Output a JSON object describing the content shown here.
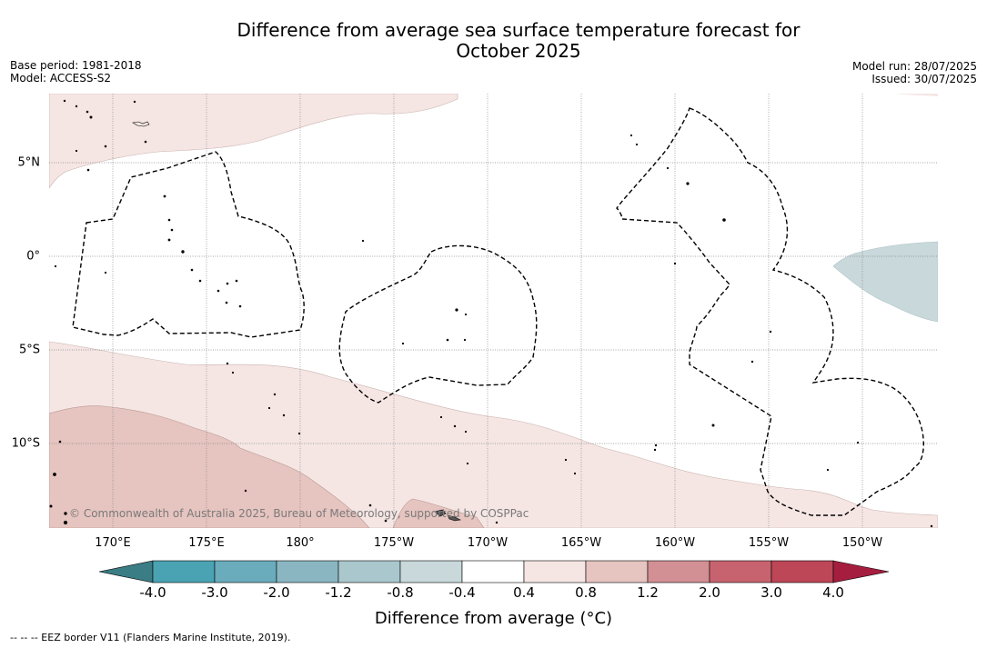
{
  "title_line1": "Difference from average sea surface temperature forecast for",
  "title_line2": "October 2025",
  "base_period": "Base period: 1981-2018",
  "model": "Model: ACCESS-S2",
  "model_run": "Model run: 28/07/2025",
  "issued": "Issued: 30/07/2025",
  "copyright": "© Commonwealth of Australia 2025, Bureau of Meteorology, supported by COSPPac",
  "longitude_labels": [
    "170°E",
    "175°E",
    "180°",
    "175°W",
    "170°W",
    "165°W",
    "160°W",
    "155°W",
    "150°W"
  ],
  "latitude_labels": [
    "5°N",
    "0°",
    "5°S",
    "10°S"
  ],
  "colorbar": {
    "title": "Difference from average (°C)",
    "ticks": [
      "-4.0",
      "-3.0",
      "-2.0",
      "-1.2",
      "-0.8",
      "-0.4",
      "0.4",
      "0.8",
      "1.2",
      "2.0",
      "3.0",
      "4.0"
    ],
    "colors": [
      "#3a7d84",
      "#4aa3b2",
      "#6aabbc",
      "#8ab6c2",
      "#a9c7cc",
      "#c8d8db",
      "#ffffff",
      "#f5e6e4",
      "#e6c4bf",
      "#d28f94",
      "#c7636f",
      "#bd4657",
      "#a61e3f"
    ]
  },
  "legend_note": "--  --  -- EEZ border V11 (Flanders Marine Institute, 2019)."
}
